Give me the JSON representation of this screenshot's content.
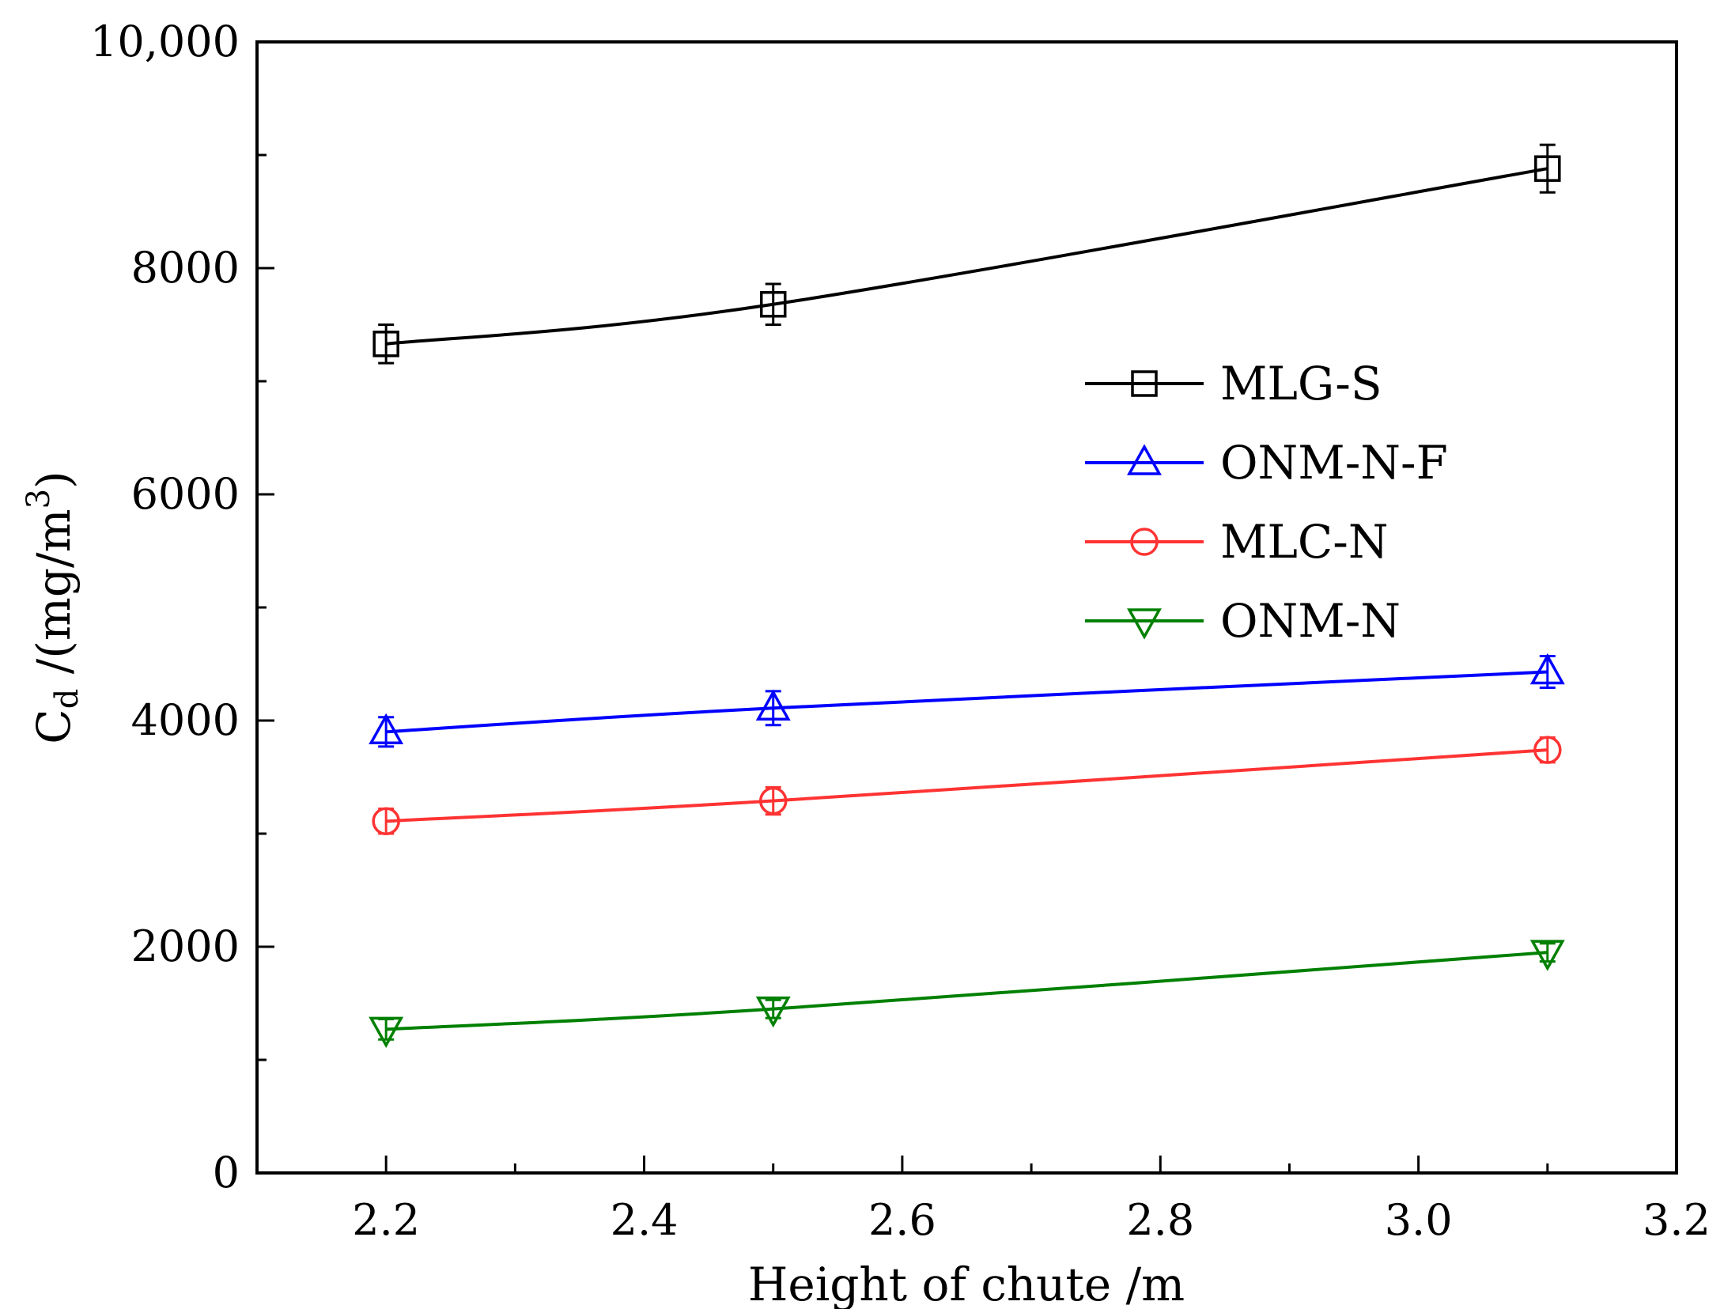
{
  "chart_data": {
    "type": "line",
    "title": "",
    "xlabel": "Height of chute /m",
    "ylabel": {
      "main": "C",
      "subscript": "d",
      "unit_prefix": " /(mg/m",
      "superscript": "3",
      "unit_suffix": ")"
    },
    "xlim": [
      2.1,
      3.2
    ],
    "ylim": [
      0,
      10000
    ],
    "x_ticks": [
      2.2,
      2.4,
      2.6,
      2.8,
      3.0,
      3.2
    ],
    "x_tick_labels": [
      "2.2",
      "2.4",
      "2.6",
      "2.8",
      "3.0",
      "3.2"
    ],
    "x_minor_ticks": [
      2.3,
      2.5,
      2.7,
      2.9,
      3.1
    ],
    "y_ticks": [
      0,
      2000,
      4000,
      6000,
      8000,
      10000
    ],
    "y_tick_labels": [
      "0",
      "2000",
      "4000",
      "6000",
      "8000",
      "10,000"
    ],
    "y_minor_ticks": [
      1000,
      3000,
      5000,
      7000,
      9000
    ],
    "grid": false,
    "legend_position": "right-middle",
    "series": [
      {
        "name": "MLG-S",
        "color": "#000000",
        "marker": "square",
        "x": [
          2.2,
          2.5,
          3.1
        ],
        "y": [
          7330,
          7680,
          8880
        ],
        "err": [
          170,
          180,
          210
        ]
      },
      {
        "name": "ONM-N-F",
        "color": "#0000ff",
        "marker": "triangle-up",
        "x": [
          2.2,
          2.5,
          3.1
        ],
        "y": [
          3900,
          4110,
          4430
        ],
        "err": [
          130,
          150,
          140
        ]
      },
      {
        "name": "MLC-N",
        "color": "#ff3333",
        "marker": "circle",
        "x": [
          2.2,
          2.5,
          3.1
        ],
        "y": [
          3110,
          3290,
          3740
        ],
        "err": [
          110,
          120,
          110
        ]
      },
      {
        "name": "ONM-N",
        "color": "#008000",
        "marker": "triangle-down",
        "x": [
          2.2,
          2.5,
          3.1
        ],
        "y": [
          1270,
          1450,
          1950
        ],
        "err": [
          90,
          80,
          80
        ]
      }
    ]
  }
}
